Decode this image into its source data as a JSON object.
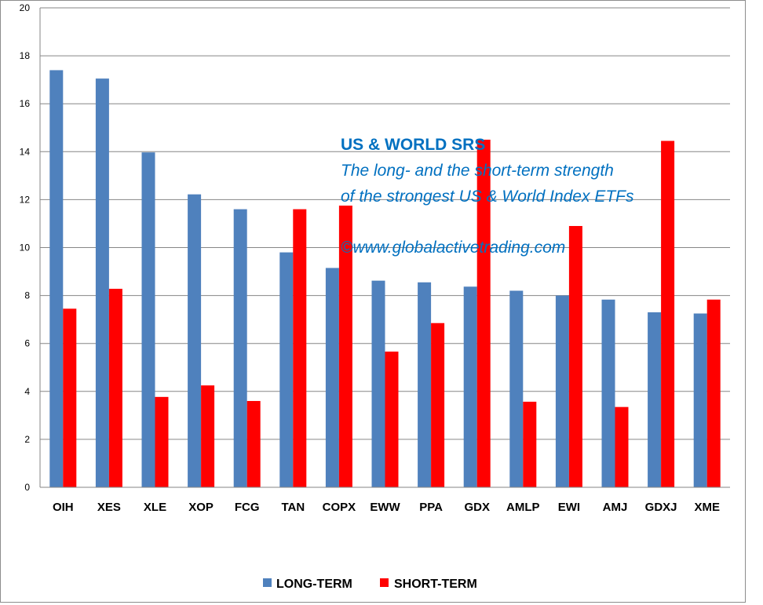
{
  "chart_data": {
    "type": "bar",
    "title": "",
    "xlabel": "",
    "ylabel": "",
    "ylim": [
      0,
      20
    ],
    "ytick_step": 2,
    "grid": true,
    "legend_position": "bottom",
    "categories": [
      "OIH",
      "XES",
      "XLE",
      "XOP",
      "FCG",
      "TAN",
      "COPX",
      "EWW",
      "PPA",
      "GDX",
      "AMLP",
      "EWI",
      "AMJ",
      "GDXJ",
      "XME"
    ],
    "series": [
      {
        "name": "LONG-TERM",
        "color": "#4f81bd",
        "values": [
          17.4,
          17.05,
          13.97,
          12.22,
          11.6,
          9.8,
          9.15,
          8.62,
          8.55,
          8.37,
          8.2,
          8.0,
          7.83,
          7.3,
          7.25
        ]
      },
      {
        "name": "SHORT-TERM",
        "color": "#ff0000",
        "values": [
          7.45,
          8.28,
          3.77,
          4.25,
          3.6,
          11.6,
          11.75,
          5.66,
          6.85,
          14.5,
          3.57,
          10.9,
          3.35,
          14.45,
          7.83
        ]
      }
    ],
    "annotations": {
      "heading": "US & WORLD SRS",
      "line1": "The long- and the short-term strength",
      "line2": "of the  strongest  US & World Index ETFs",
      "line3": "©www.globalactivetrading.com"
    }
  }
}
